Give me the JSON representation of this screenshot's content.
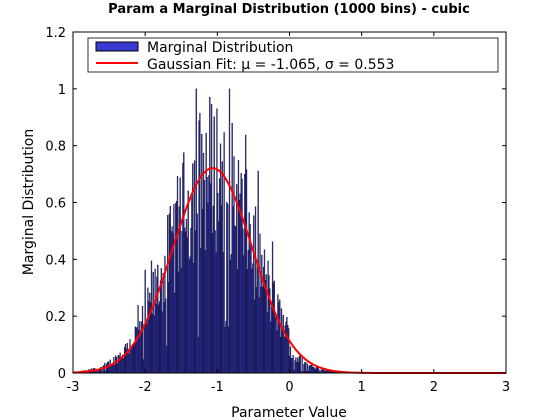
{
  "chart_data": {
    "type": "bar",
    "title": "Param a Marginal Distribution (1000 bins) - cubic",
    "xlabel": "Parameter Value",
    "ylabel": "Marginal Distribution",
    "xlim": [
      -3,
      3
    ],
    "ylim": [
      0,
      1.2
    ],
    "x_ticks": [
      "-3",
      "-2",
      "-1",
      "0",
      "1",
      "2",
      "3"
    ],
    "y_ticks": [
      "0",
      "0.2",
      "0.4",
      "0.6",
      "0.8",
      "1",
      "1.2"
    ],
    "grid": false,
    "legend_position": "top",
    "histogram": {
      "name": "Marginal Distribution",
      "bins": 1000,
      "color": "#3a3ad2",
      "edge_color": "#000000",
      "approx_mean": -1.065,
      "approx_sigma": 0.553,
      "approx_peak_height": 0.98,
      "x_range": [
        -2.9,
        1.2
      ]
    },
    "series": [
      {
        "name": "Gaussian Fit: μ = -1.065, σ  = 0.553",
        "type": "line",
        "color": "#ff0000",
        "mu": -1.065,
        "sigma": 0.553,
        "amplitude": 0.721
      }
    ]
  }
}
